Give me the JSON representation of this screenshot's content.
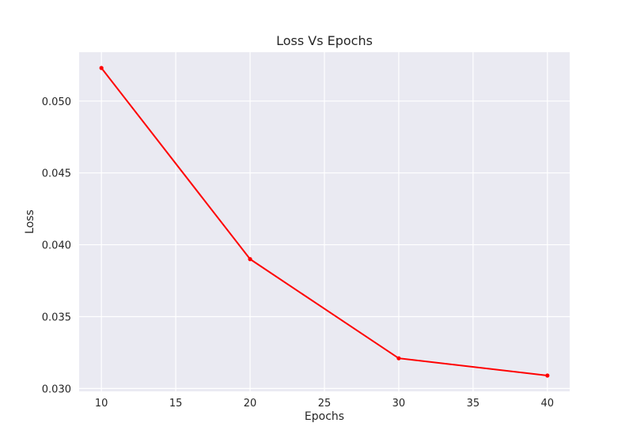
{
  "chart_data": {
    "type": "line",
    "title": "Loss Vs Epochs",
    "xlabel": "Epochs",
    "ylabel": "Loss",
    "x": [
      10,
      20,
      30,
      40
    ],
    "series": [
      {
        "name": "Loss",
        "values": [
          0.0523,
          0.039,
          0.0321,
          0.0309
        ],
        "color": "#ff0000",
        "marker": "point"
      }
    ],
    "xlim": [
      8.5,
      41.5
    ],
    "ylim": [
      0.0298,
      0.0534
    ],
    "xticks": [
      10,
      15,
      20,
      25,
      30,
      35,
      40
    ],
    "xtick_labels": [
      "10",
      "15",
      "20",
      "25",
      "30",
      "35",
      "40"
    ],
    "yticks": [
      0.03,
      0.035,
      0.04,
      0.045,
      0.05
    ],
    "ytick_labels": [
      "0.030",
      "0.035",
      "0.040",
      "0.045",
      "0.050"
    ],
    "grid": true,
    "background_color": "#eaeaf2",
    "grid_color": "#ffffff"
  }
}
